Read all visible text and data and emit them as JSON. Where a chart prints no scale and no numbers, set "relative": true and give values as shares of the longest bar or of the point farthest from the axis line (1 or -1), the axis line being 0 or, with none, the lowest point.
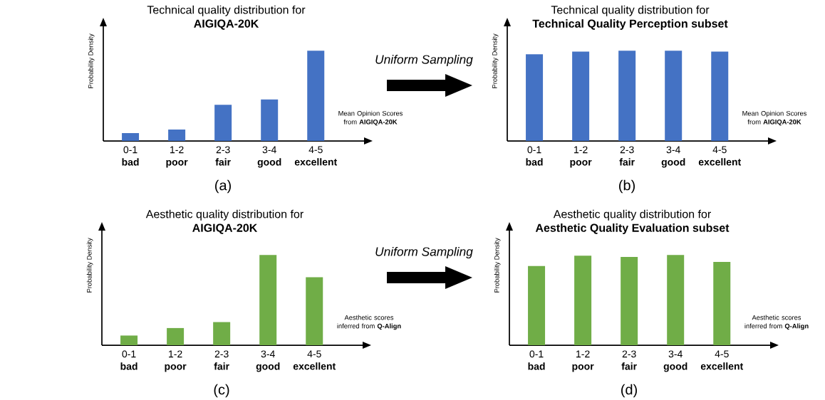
{
  "chart_data": [
    {
      "type": "bar",
      "title": "Technical quality distribution for",
      "subtitle": "AIGIQA-20K",
      "ylabel": "Probability Density",
      "xlabel": "Mean Opinion Scores from **AIGIQA-20K**",
      "categories": [
        "0-1 **bad**",
        "1-2 **poor**",
        "2-3 **fair**",
        "3-4 **good**",
        "4-5 **excellent**"
      ],
      "values": [
        0.087,
        0.126,
        0.4,
        0.46,
        1
      ],
      "color": "#4472c4",
      "relative": true,
      "annotations": [
        "(a)",
        "Uniform Sampling"
      ]
    },
    {
      "type": "bar",
      "title": "Technical quality distribution for",
      "subtitle": "Technical Quality Perception subset",
      "ylabel": "Probability Density",
      "xlabel": "Mean Opinion Scores from **AIGIQA-20K**",
      "categories": [
        "0-1 **bad**",
        "1-2 **poor**",
        "2-3 **fair**",
        "3-4 **good**",
        "4-5 **excellent**"
      ],
      "values": [
        0.96,
        0.99,
        1,
        1,
        0.99
      ],
      "color": "#4472c4",
      "relative": true,
      "annotations": [
        "(b)"
      ]
    },
    {
      "type": "bar",
      "title": "Aesthetic quality distribution for",
      "subtitle": "AIGIQA-20K",
      "ylabel": "Probability Density",
      "xlabel": "Aesthetic scores inferred from **Q-Align**",
      "categories": [
        "0-1 **bad**",
        "1-2 **poor**",
        "2-3 **fair**",
        "3-4 **good**",
        "4-5 **excellent**"
      ],
      "values": [
        0.107,
        0.19,
        0.256,
        1,
        0.752
      ],
      "color": "#70ad47",
      "relative": true,
      "annotations": [
        "(c)",
        "Uniform Sampling"
      ]
    },
    {
      "type": "bar",
      "title": "Aesthetic quality distribution for",
      "subtitle": "Aesthetic Quality Evaluation subset",
      "ylabel": "Probability Density",
      "xlabel": "Aesthetic scores inferred from **Q-Align**",
      "categories": [
        "0-1 **bad**",
        "1-2 **poor**",
        "2-3 **fair**",
        "3-4 **good**",
        "4-5 **excellent**"
      ],
      "values": [
        0.876,
        0.992,
        0.977,
        1,
        0.922
      ],
      "color": "#70ad47",
      "relative": true,
      "annotations": [
        "(d)"
      ]
    }
  ]
}
